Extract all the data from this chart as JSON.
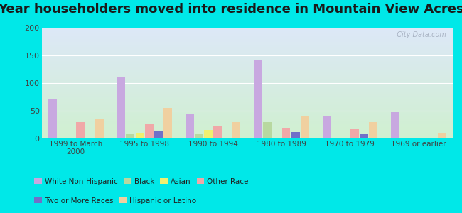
{
  "title": "Year householders moved into residence in Mountain View Acres",
  "categories": [
    "1999 to March\n2000",
    "1995 to 1998",
    "1990 to 1994",
    "1980 to 1989",
    "1970 to 1979",
    "1969 or earlier"
  ],
  "series": {
    "White Non-Hispanic": [
      72,
      110,
      45,
      142,
      40,
      47
    ],
    "Black": [
      0,
      8,
      8,
      30,
      0,
      0
    ],
    "Asian": [
      0,
      10,
      16,
      0,
      0,
      0
    ],
    "Other Race": [
      29,
      26,
      23,
      19,
      17,
      0
    ],
    "Two or More Races": [
      0,
      14,
      0,
      11,
      8,
      0
    ],
    "Hispanic or Latino": [
      35,
      55,
      29,
      40,
      29,
      10
    ]
  },
  "colors": {
    "White Non-Hispanic": "#c8a8e0",
    "Black": "#b8d8a0",
    "Asian": "#f0f070",
    "Other Race": "#f0a8a8",
    "Two or More Races": "#7070c8",
    "Hispanic or Latino": "#f0d0a0"
  },
  "ylim": [
    0,
    200
  ],
  "yticks": [
    0,
    50,
    100,
    150,
    200
  ],
  "background_color": "#00e8e8",
  "plot_bg_gradient_top": "#dde8f8",
  "plot_bg_gradient_bottom": "#d0f0d0",
  "title_fontsize": 13,
  "watermark": "  City-Data.com"
}
